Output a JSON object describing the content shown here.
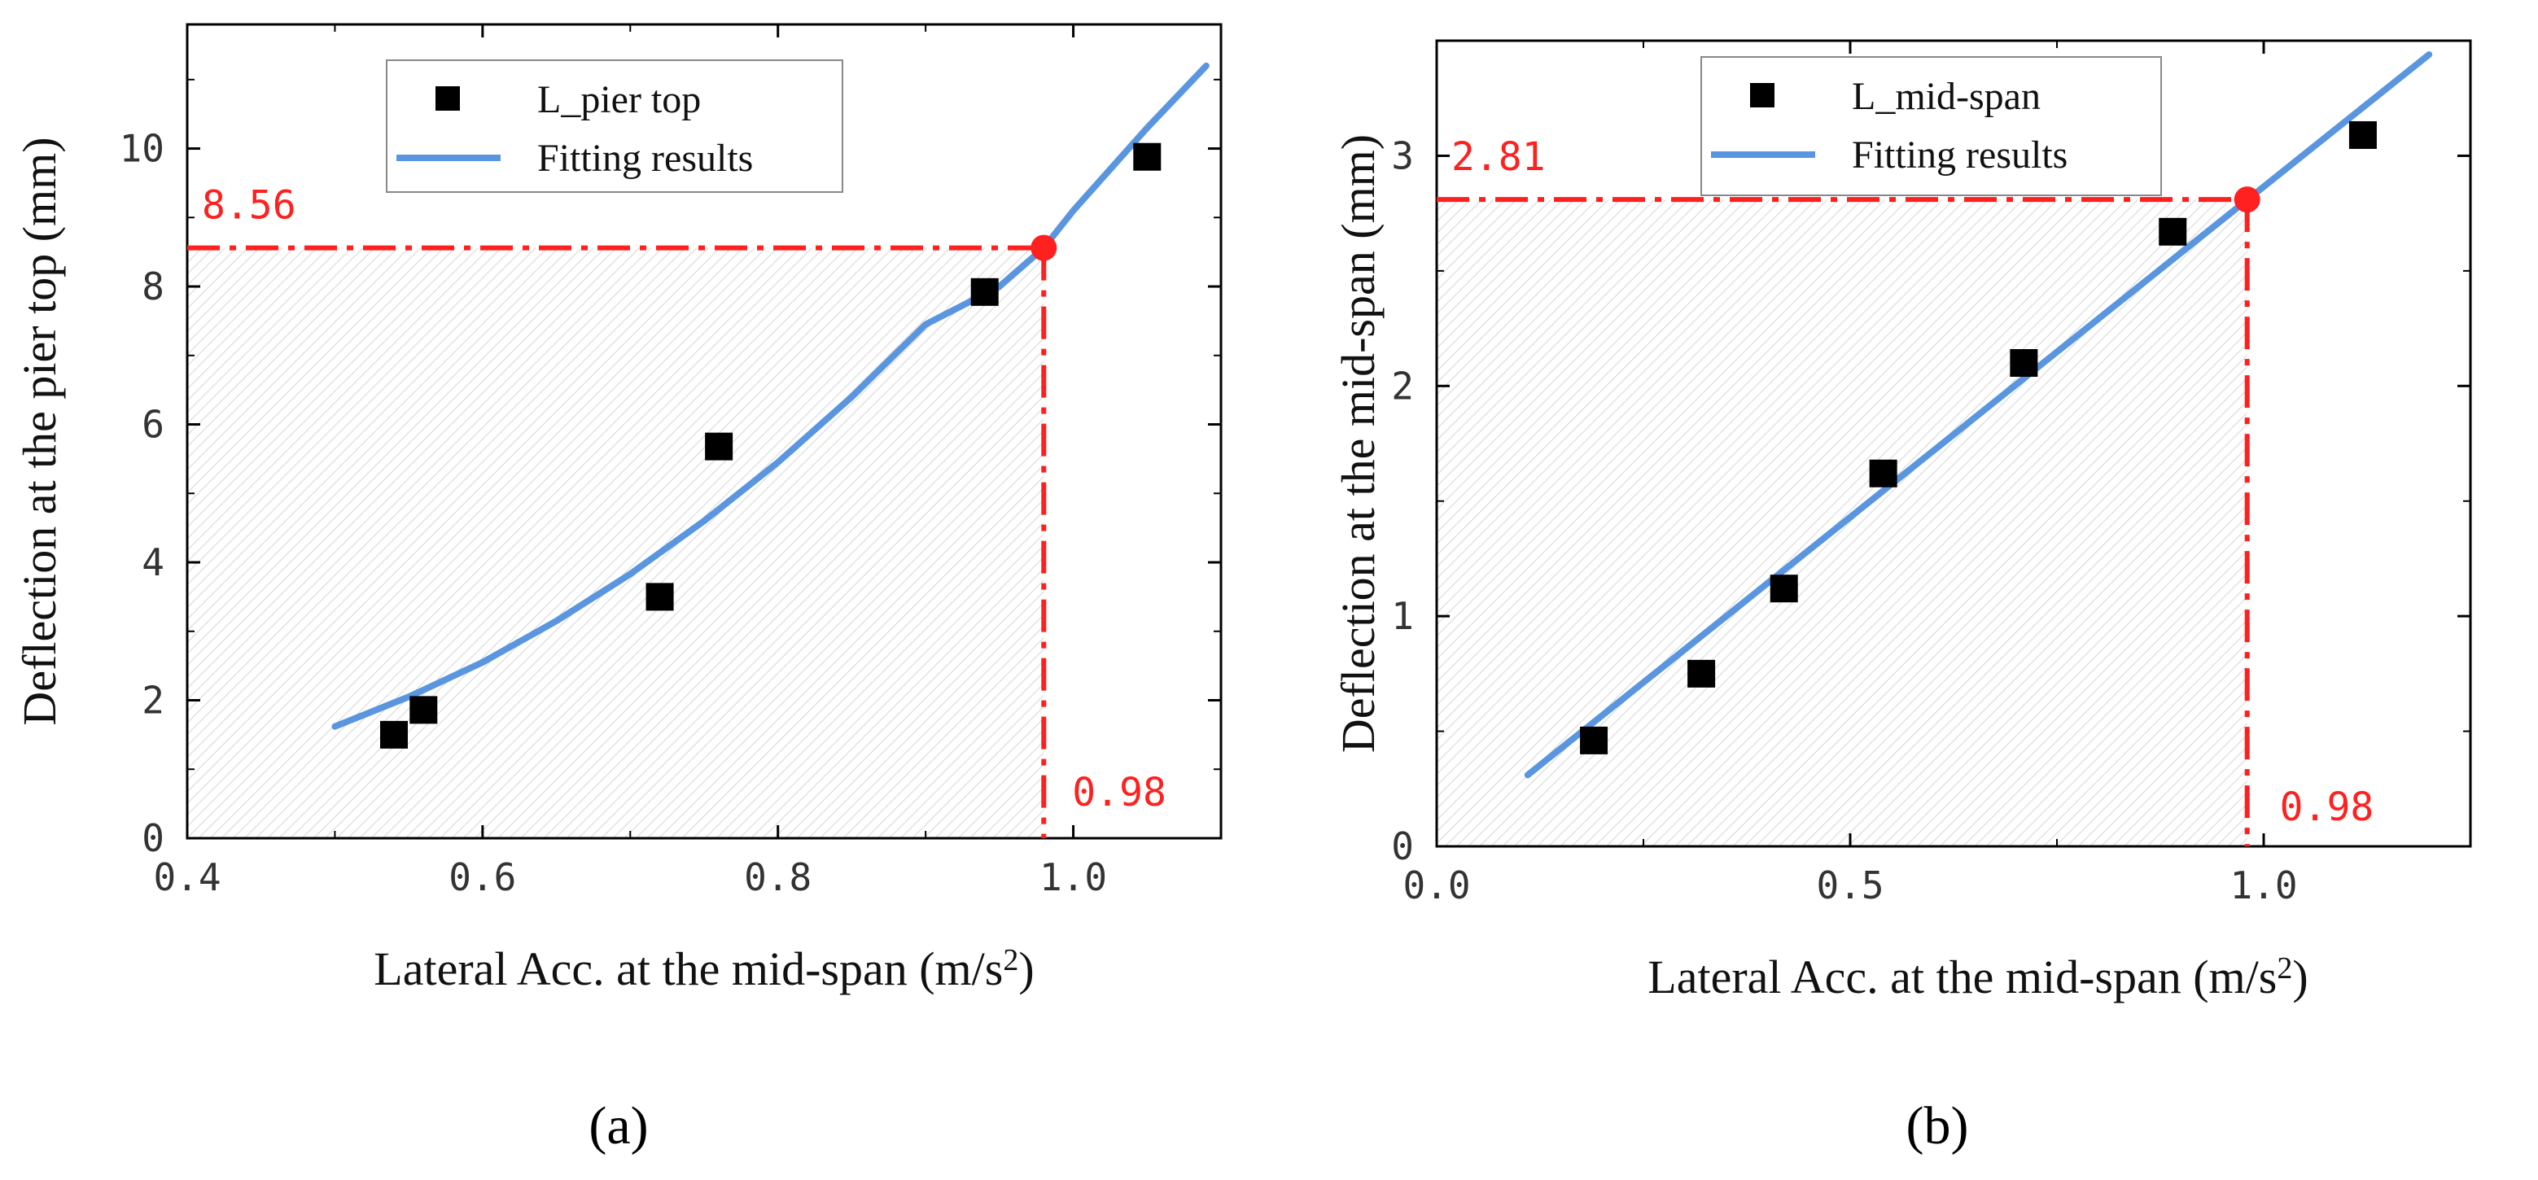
{
  "figure": {
    "panel_a_label": "(a)",
    "panel_b_label": "(b)"
  },
  "chart_data": [
    {
      "id": "a",
      "type": "scatter",
      "title": "",
      "xlabel": "Lateral Acc. at the mid-span (m/s",
      "xlabel_sup": "2",
      "xlabel_end": ")",
      "ylabel": "Deflection at the pier top (mm)",
      "xlim": [
        0.4,
        1.1
      ],
      "ylim": [
        0,
        11.8
      ],
      "xticks": [
        0.4,
        0.6,
        0.8,
        1.0
      ],
      "xtick_labels": [
        "0.4",
        "0.6",
        "0.8",
        "1.0"
      ],
      "yticks": [
        0,
        2,
        4,
        6,
        8,
        10
      ],
      "ytick_labels": [
        "0",
        "2",
        "4",
        "6",
        "8",
        "10"
      ],
      "series": [
        {
          "name": "L_pier top",
          "kind": "markers",
          "color": "#000000",
          "x": [
            0.54,
            0.56,
            0.72,
            0.76,
            0.94,
            1.05
          ],
          "y": [
            1.5,
            1.86,
            3.5,
            5.68,
            7.92,
            9.88
          ]
        },
        {
          "name": "Fitting results",
          "kind": "line",
          "color": "#5a95e0",
          "x": [
            0.5,
            0.55,
            0.6,
            0.65,
            0.7,
            0.75,
            0.8,
            0.85,
            0.9,
            0.95,
            0.98,
            1.0,
            1.05,
            1.09
          ],
          "y": [
            1.62,
            2.05,
            2.55,
            3.15,
            3.83,
            4.6,
            5.45,
            6.4,
            7.45,
            8.0,
            8.56,
            9.1,
            10.3,
            11.2
          ]
        }
      ],
      "highlight": {
        "x": 0.98,
        "y": 8.56,
        "x_label": "0.98",
        "y_label": "8.56",
        "color": "#ff2020"
      },
      "legend": {
        "position": "top-center",
        "entries": [
          "L_pier top",
          "Fitting results"
        ]
      }
    },
    {
      "id": "b",
      "type": "scatter",
      "title": "",
      "xlabel": "Lateral Acc. at the mid-span (m/s",
      "xlabel_sup": "2",
      "xlabel_end": ")",
      "ylabel": "Deflection at the mid-span (mm)",
      "xlim": [
        0.0,
        1.25
      ],
      "ylim": [
        0,
        3.5
      ],
      "xticks": [
        0.0,
        0.5,
        1.0
      ],
      "xtick_labels": [
        "0.0",
        "0.5",
        "1.0"
      ],
      "yticks": [
        0,
        1,
        2,
        3
      ],
      "ytick_labels": [
        "0",
        "1",
        "2",
        "3"
      ],
      "series": [
        {
          "name": "L_mid-span",
          "kind": "markers",
          "color": "#000000",
          "x": [
            0.19,
            0.32,
            0.42,
            0.54,
            0.71,
            0.89,
            1.12
          ],
          "y": [
            0.46,
            0.75,
            1.12,
            1.62,
            2.1,
            2.67,
            3.09
          ]
        },
        {
          "name": "Fitting results",
          "kind": "line",
          "color": "#5a95e0",
          "x": [
            0.11,
            1.2
          ],
          "y": [
            0.31,
            3.44
          ]
        }
      ],
      "highlight": {
        "x": 0.98,
        "y": 2.81,
        "x_label": "0.98",
        "y_label": "2.81",
        "color": "#ff2020"
      },
      "legend": {
        "position": "top-center",
        "entries": [
          "L_mid-span",
          "Fitting results"
        ]
      }
    }
  ]
}
